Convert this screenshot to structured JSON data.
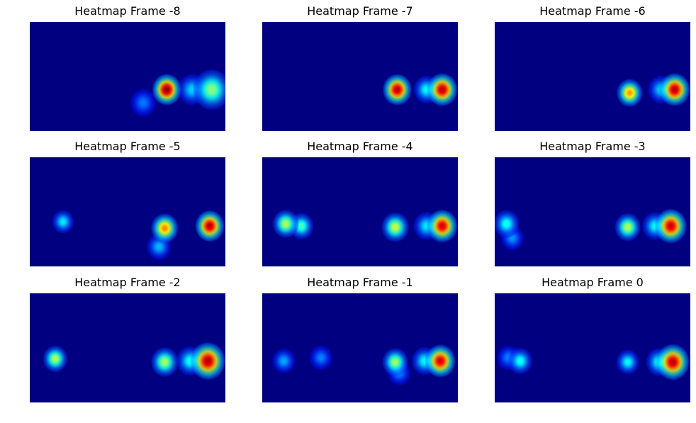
{
  "chart_data": [
    {
      "type": "heatmap",
      "title": "Heatmap Frame -8",
      "colormap": "jet",
      "axes_visible": false,
      "blobs": [
        {
          "x": 0.7,
          "y": 0.62,
          "intensity": 1.0,
          "spread": 1.0
        },
        {
          "x": 0.93,
          "y": 0.62,
          "intensity": 0.45,
          "spread": 1.3
        },
        {
          "x": 0.83,
          "y": 0.62,
          "intensity": 0.25,
          "spread": 1.0
        },
        {
          "x": 0.58,
          "y": 0.74,
          "intensity": 0.15,
          "spread": 0.9
        }
      ]
    },
    {
      "type": "heatmap",
      "title": "Heatmap Frame -7",
      "colormap": "jet",
      "axes_visible": false,
      "blobs": [
        {
          "x": 0.69,
          "y": 0.62,
          "intensity": 0.95,
          "spread": 1.0
        },
        {
          "x": 0.92,
          "y": 0.62,
          "intensity": 0.95,
          "spread": 1.05
        },
        {
          "x": 0.84,
          "y": 0.62,
          "intensity": 0.3,
          "spread": 0.9
        }
      ]
    },
    {
      "type": "heatmap",
      "title": "Heatmap Frame -6",
      "colormap": "jet",
      "axes_visible": false,
      "blobs": [
        {
          "x": 0.69,
          "y": 0.65,
          "intensity": 0.7,
          "spread": 0.9
        },
        {
          "x": 0.92,
          "y": 0.62,
          "intensity": 0.95,
          "spread": 1.05
        },
        {
          "x": 0.85,
          "y": 0.62,
          "intensity": 0.25,
          "spread": 0.9
        }
      ]
    },
    {
      "type": "heatmap",
      "title": "Heatmap Frame -5",
      "colormap": "jet",
      "axes_visible": false,
      "blobs": [
        {
          "x": 0.17,
          "y": 0.59,
          "intensity": 0.28,
          "spread": 0.75
        },
        {
          "x": 0.69,
          "y": 0.65,
          "intensity": 0.72,
          "spread": 0.95
        },
        {
          "x": 0.66,
          "y": 0.82,
          "intensity": 0.22,
          "spread": 0.85
        },
        {
          "x": 0.92,
          "y": 0.63,
          "intensity": 0.95,
          "spread": 1.0
        }
      ]
    },
    {
      "type": "heatmap",
      "title": "Heatmap Frame -4",
      "colormap": "jet",
      "axes_visible": false,
      "blobs": [
        {
          "x": 0.12,
          "y": 0.61,
          "intensity": 0.5,
          "spread": 0.9
        },
        {
          "x": 0.2,
          "y": 0.63,
          "intensity": 0.38,
          "spread": 0.85
        },
        {
          "x": 0.68,
          "y": 0.64,
          "intensity": 0.52,
          "spread": 0.95
        },
        {
          "x": 0.92,
          "y": 0.63,
          "intensity": 0.92,
          "spread": 1.05
        },
        {
          "x": 0.84,
          "y": 0.63,
          "intensity": 0.28,
          "spread": 0.9
        }
      ]
    },
    {
      "type": "heatmap",
      "title": "Heatmap Frame -3",
      "colormap": "jet",
      "axes_visible": false,
      "blobs": [
        {
          "x": 0.06,
          "y": 0.61,
          "intensity": 0.32,
          "spread": 0.9
        },
        {
          "x": 0.09,
          "y": 0.74,
          "intensity": 0.18,
          "spread": 0.8
        },
        {
          "x": 0.68,
          "y": 0.64,
          "intensity": 0.5,
          "spread": 0.9
        },
        {
          "x": 0.9,
          "y": 0.63,
          "intensity": 0.93,
          "spread": 1.1
        },
        {
          "x": 0.82,
          "y": 0.63,
          "intensity": 0.3,
          "spread": 0.9
        }
      ]
    },
    {
      "type": "heatmap",
      "title": "Heatmap Frame -2",
      "colormap": "jet",
      "axes_visible": false,
      "blobs": [
        {
          "x": 0.13,
          "y": 0.6,
          "intensity": 0.5,
          "spread": 0.85
        },
        {
          "x": 0.69,
          "y": 0.63,
          "intensity": 0.48,
          "spread": 0.95
        },
        {
          "x": 0.91,
          "y": 0.62,
          "intensity": 0.96,
          "spread": 1.2
        },
        {
          "x": 0.82,
          "y": 0.62,
          "intensity": 0.32,
          "spread": 0.95
        }
      ]
    },
    {
      "type": "heatmap",
      "title": "Heatmap Frame -1",
      "colormap": "jet",
      "axes_visible": false,
      "blobs": [
        {
          "x": 0.11,
          "y": 0.62,
          "intensity": 0.2,
          "spread": 0.8
        },
        {
          "x": 0.3,
          "y": 0.59,
          "intensity": 0.16,
          "spread": 0.8
        },
        {
          "x": 0.68,
          "y": 0.63,
          "intensity": 0.48,
          "spread": 0.9
        },
        {
          "x": 0.7,
          "y": 0.73,
          "intensity": 0.16,
          "spread": 0.8
        },
        {
          "x": 0.91,
          "y": 0.62,
          "intensity": 0.92,
          "spread": 1.05
        },
        {
          "x": 0.83,
          "y": 0.62,
          "intensity": 0.3,
          "spread": 0.9
        }
      ]
    },
    {
      "type": "heatmap",
      "title": "Heatmap Frame 0",
      "colormap": "jet",
      "axes_visible": false,
      "blobs": [
        {
          "x": 0.13,
          "y": 0.62,
          "intensity": 0.32,
          "spread": 0.85
        },
        {
          "x": 0.07,
          "y": 0.59,
          "intensity": 0.16,
          "spread": 0.8
        },
        {
          "x": 0.68,
          "y": 0.63,
          "intensity": 0.3,
          "spread": 0.8
        },
        {
          "x": 0.91,
          "y": 0.63,
          "intensity": 0.95,
          "spread": 1.15
        },
        {
          "x": 0.84,
          "y": 0.63,
          "intensity": 0.32,
          "spread": 0.9
        }
      ]
    }
  ]
}
